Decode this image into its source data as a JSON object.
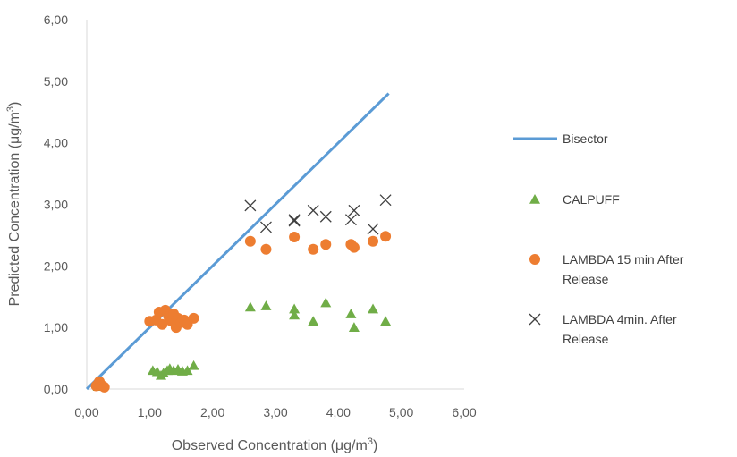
{
  "chart_data": {
    "type": "scatter",
    "xlabel": "Observed Concentration (μg/m",
    "ylabel": "Predicted Concentration (μg/m",
    "label_superscript": "3",
    "label_close": ")",
    "xlim": [
      0,
      6
    ],
    "ylim": [
      0,
      6
    ],
    "x_ticks": [
      "0,00",
      "1,00",
      "2,00",
      "3,00",
      "4,00",
      "5,00",
      "6,00"
    ],
    "y_ticks": [
      "0,00",
      "1,00",
      "2,00",
      "3,00",
      "4,00",
      "5,00",
      "6,00"
    ],
    "grid": false,
    "legend_position": "right",
    "series": [
      {
        "name": "Bisector",
        "kind": "line",
        "color": "#5b9bd5",
        "points": [
          [
            0,
            0
          ],
          [
            4.8,
            4.8
          ]
        ]
      },
      {
        "name": "CALPUFF",
        "kind": "triangle",
        "color": "#70ad47",
        "points": [
          [
            0.18,
            0.04
          ],
          [
            0.2,
            0.05
          ],
          [
            0.22,
            0.04
          ],
          [
            0.25,
            0.06
          ],
          [
            1.05,
            0.3
          ],
          [
            1.12,
            0.28
          ],
          [
            1.18,
            0.22
          ],
          [
            1.22,
            0.26
          ],
          [
            1.28,
            0.3
          ],
          [
            1.32,
            0.33
          ],
          [
            1.38,
            0.3
          ],
          [
            1.45,
            0.32
          ],
          [
            1.52,
            0.29
          ],
          [
            1.6,
            0.3
          ],
          [
            1.7,
            0.38
          ],
          [
            2.6,
            1.33
          ],
          [
            2.85,
            1.35
          ],
          [
            3.3,
            1.3
          ],
          [
            3.3,
            1.2
          ],
          [
            3.6,
            1.1
          ],
          [
            3.8,
            1.4
          ],
          [
            4.2,
            1.22
          ],
          [
            4.25,
            1.0
          ],
          [
            4.55,
            1.3
          ],
          [
            4.75,
            1.1
          ]
        ]
      },
      {
        "name": "LAMBDA 15 min After Release",
        "kind": "circle",
        "color": "#ed7d31",
        "points": [
          [
            0.15,
            0.05
          ],
          [
            0.18,
            0.08
          ],
          [
            0.2,
            0.12
          ],
          [
            0.22,
            0.06
          ],
          [
            0.25,
            0.05
          ],
          [
            0.28,
            0.03
          ],
          [
            1.0,
            1.1
          ],
          [
            1.1,
            1.12
          ],
          [
            1.15,
            1.25
          ],
          [
            1.2,
            1.05
          ],
          [
            1.25,
            1.28
          ],
          [
            1.3,
            1.18
          ],
          [
            1.35,
            1.1
          ],
          [
            1.38,
            1.22
          ],
          [
            1.42,
            1.0
          ],
          [
            1.45,
            1.15
          ],
          [
            1.5,
            1.08
          ],
          [
            1.55,
            1.12
          ],
          [
            1.6,
            1.05
          ],
          [
            1.7,
            1.15
          ],
          [
            2.6,
            2.4
          ],
          [
            2.85,
            2.27
          ],
          [
            3.3,
            2.47
          ],
          [
            3.6,
            2.27
          ],
          [
            3.8,
            2.35
          ],
          [
            4.2,
            2.35
          ],
          [
            4.25,
            2.3
          ],
          [
            4.55,
            2.4
          ],
          [
            4.75,
            2.48
          ]
        ]
      },
      {
        "name": "LAMBDA 4min. After Release",
        "kind": "x",
        "color": "#404040",
        "points": [
          [
            2.6,
            2.98
          ],
          [
            2.85,
            2.63
          ],
          [
            3.3,
            2.73
          ],
          [
            3.3,
            2.75
          ],
          [
            3.6,
            2.9
          ],
          [
            3.8,
            2.8
          ],
          [
            4.2,
            2.75
          ],
          [
            4.25,
            2.9
          ],
          [
            4.55,
            2.6
          ],
          [
            4.75,
            3.07
          ]
        ]
      }
    ],
    "legend": [
      {
        "kind": "line",
        "lines": [
          "Bisector"
        ]
      },
      {
        "kind": "triangle",
        "lines": [
          "CALPUFF"
        ]
      },
      {
        "kind": "circle",
        "lines": [
          "LAMBDA 15 min After",
          "Release"
        ]
      },
      {
        "kind": "x",
        "lines": [
          "LAMBDA 4min. After",
          "Release"
        ]
      }
    ]
  }
}
